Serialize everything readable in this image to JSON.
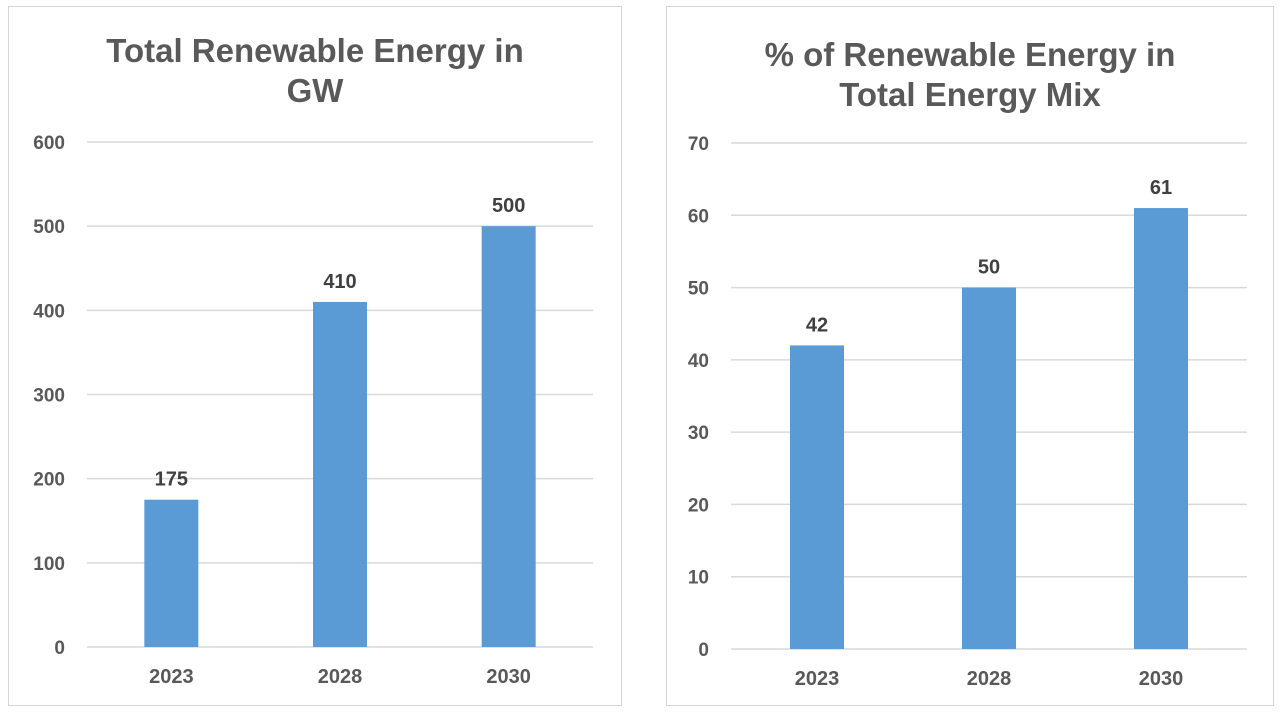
{
  "chart_data": [
    {
      "type": "bar",
      "title": "Total Renewable Energy in GW",
      "title_lines": [
        "Total Renewable Energy in",
        "GW"
      ],
      "categories": [
        "2023",
        "2028",
        "2030"
      ],
      "values": [
        175,
        410,
        500
      ],
      "yticks": [
        0,
        100,
        200,
        300,
        400,
        500,
        600
      ],
      "ylim": [
        0,
        600
      ],
      "xlabel": "",
      "ylabel": "",
      "grid": true,
      "bar_color": "#5b9bd5",
      "grid_color": "#d9d9d9"
    },
    {
      "type": "bar",
      "title": "% of Renewable Energy in Total Energy Mix",
      "title_lines": [
        "% of Renewable Energy in",
        "Total Energy Mix"
      ],
      "categories": [
        "2023",
        "2028",
        "2030"
      ],
      "values": [
        42,
        50,
        61
      ],
      "yticks": [
        0,
        10,
        20,
        30,
        40,
        50,
        60,
        70
      ],
      "ylim": [
        0,
        70
      ],
      "xlabel": "",
      "ylabel": "",
      "grid": true,
      "bar_color": "#5b9bd5",
      "grid_color": "#d9d9d9"
    }
  ]
}
